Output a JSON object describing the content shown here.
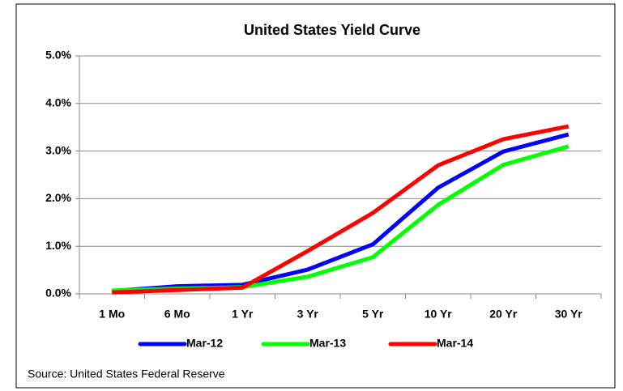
{
  "chart_data": {
    "type": "line",
    "title": "United States Yield Curve",
    "categories": [
      "1 Mo",
      "6 Mo",
      "1 Yr",
      "3 Yr",
      "5 Yr",
      "10 Yr",
      "20 Yr",
      "30 Yr"
    ],
    "series": [
      {
        "name": "Mar-12",
        "color": "#0000ff",
        "values": [
          0.06,
          0.16,
          0.19,
          0.51,
          1.04,
          2.23,
          2.99,
          3.35
        ]
      },
      {
        "name": "Mar-13",
        "color": "#00ff00",
        "values": [
          0.07,
          0.11,
          0.14,
          0.36,
          0.77,
          1.87,
          2.71,
          3.1
        ]
      },
      {
        "name": "Mar-14",
        "color": "#ff0000",
        "values": [
          0.03,
          0.08,
          0.13,
          0.9,
          1.7,
          2.7,
          3.25,
          3.52
        ]
      }
    ],
    "ylim": [
      0,
      5
    ],
    "yticks": [
      {
        "value": 0,
        "label": "0.0%"
      },
      {
        "value": 1,
        "label": "1.0%"
      },
      {
        "value": 2,
        "label": "2.0%"
      },
      {
        "value": 3,
        "label": "3.0%"
      },
      {
        "value": 4,
        "label": "4.0%"
      },
      {
        "value": 5,
        "label": "5.0%"
      }
    ],
    "grid": true,
    "legend": "bottom",
    "source": "Source: United States Federal Reserve"
  }
}
